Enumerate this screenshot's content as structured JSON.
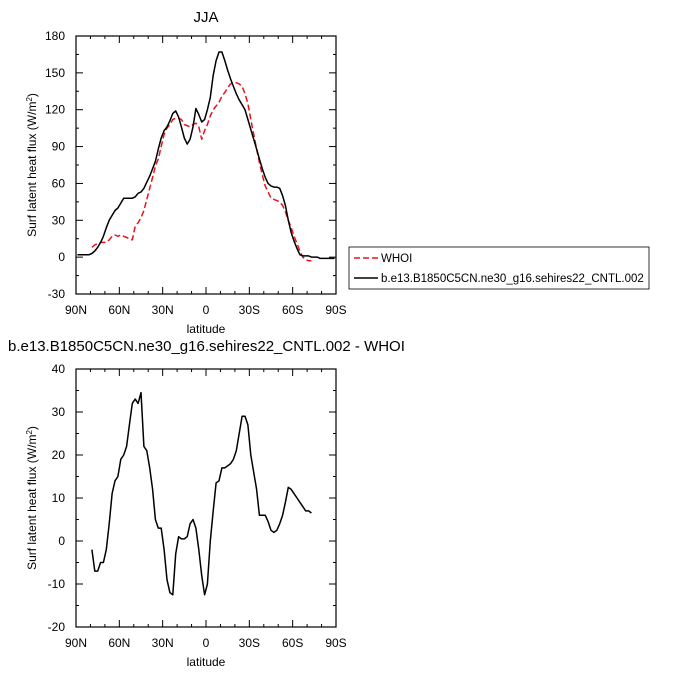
{
  "chart_data": [
    {
      "type": "line",
      "title": "JJA",
      "xlabel": "latitude",
      "ylabel": "Surf latent heat flux (W/m",
      "ylabel_sup": "2",
      "ylabel_close": ")",
      "xlim": [
        90,
        -90
      ],
      "ylim": [
        -30,
        180
      ],
      "xticks": [
        90,
        60,
        30,
        0,
        -30,
        -60,
        -90
      ],
      "xtick_labels": [
        "90N",
        "60N",
        "30N",
        "0",
        "30S",
        "60S",
        "90S"
      ],
      "yticks": [
        -30,
        0,
        30,
        60,
        90,
        120,
        150,
        180
      ],
      "ytick_labels": [
        "-30",
        "0",
        "30",
        "60",
        "90",
        "120",
        "150",
        "180"
      ],
      "grid": false,
      "legend_position": "right",
      "series": [
        {
          "name": "WHOI",
          "color": "#e8141c",
          "dash": "dashed",
          "x": [
            79,
            77,
            75,
            73,
            71,
            69,
            67,
            65,
            63,
            61,
            59,
            57,
            55,
            53,
            51,
            49,
            47,
            45,
            43,
            41,
            39,
            37,
            35,
            33,
            31,
            29,
            27,
            25,
            23,
            21,
            19,
            17,
            15,
            13,
            11,
            9,
            7,
            5,
            3,
            1,
            -1,
            -3,
            -5,
            -7,
            -9,
            -11,
            -13,
            -15,
            -17,
            -19,
            -21,
            -23,
            -25,
            -27,
            -29,
            -31,
            -33,
            -35,
            -37,
            -39,
            -41,
            -43,
            -45,
            -47,
            -49,
            -51,
            -53,
            -55,
            -57,
            -59,
            -61,
            -63,
            -65,
            -67,
            -69,
            -71,
            -73
          ],
          "y": [
            8,
            10,
            11,
            12,
            12,
            12,
            14,
            17,
            18,
            17,
            18,
            17,
            16,
            15,
            14,
            25,
            28,
            32,
            38,
            47,
            56,
            65,
            74,
            80,
            90,
            100,
            105,
            108,
            112,
            113,
            113,
            112,
            108,
            107,
            106,
            108,
            109,
            106,
            96,
            103,
            108,
            115,
            120,
            123,
            126,
            131,
            134,
            138,
            141,
            142,
            142,
            141,
            139,
            133,
            125,
            112,
            100,
            88,
            77,
            67,
            58,
            53,
            48,
            47,
            46,
            45,
            42,
            37,
            30,
            24,
            17,
            11,
            5,
            0,
            -2,
            -3,
            -3
          ]
        },
        {
          "name": "b.e13.B1850C5CN.ne30_g16.sehires22_CNTL.002",
          "color": "#000000",
          "dash": "solid",
          "x": [
            89,
            87,
            85,
            83,
            81,
            79,
            77,
            75,
            73,
            71,
            69,
            67,
            65,
            63,
            61,
            59,
            57,
            55,
            53,
            51,
            49,
            47,
            45,
            43,
            41,
            39,
            37,
            35,
            33,
            31,
            29,
            27,
            25,
            23,
            21,
            19,
            17,
            15,
            13,
            11,
            9,
            7,
            5,
            3,
            1,
            -1,
            -3,
            -5,
            -7,
            -9,
            -11,
            -13,
            -15,
            -17,
            -19,
            -21,
            -23,
            -25,
            -27,
            -29,
            -31,
            -33,
            -35,
            -37,
            -39,
            -41,
            -43,
            -45,
            -47,
            -49,
            -51,
            -53,
            -55,
            -57,
            -59,
            -61,
            -63,
            -65,
            -67,
            -69,
            -71,
            -73,
            -75,
            -77,
            -79,
            -81,
            -83,
            -85,
            -87,
            -89
          ],
          "y": [
            2,
            2,
            2,
            2,
            2,
            3,
            5,
            8,
            12,
            17,
            24,
            30,
            34,
            38,
            40,
            44,
            48,
            48,
            48,
            48,
            49,
            52,
            53,
            56,
            61,
            66,
            72,
            78,
            88,
            97,
            103,
            106,
            111,
            117,
            119,
            114,
            106,
            97,
            92,
            96,
            106,
            121,
            116,
            110,
            112,
            120,
            130,
            148,
            160,
            167,
            167,
            160,
            152,
            145,
            139,
            133,
            128,
            124,
            120,
            112,
            104,
            96,
            88,
            80,
            72,
            65,
            60,
            58,
            57,
            57,
            56,
            50,
            42,
            30,
            20,
            13,
            7,
            2,
            1,
            1,
            1,
            0,
            0,
            0,
            -1,
            -1,
            -1,
            -1,
            -1,
            -1
          ]
        }
      ]
    },
    {
      "type": "line",
      "title": "b.e13.B1850C5CN.ne30_g16.sehires22_CNTL.002 - WHOI",
      "xlabel": "latitude",
      "ylabel": "Surf latent heat flux (W/m",
      "ylabel_sup": "2",
      "ylabel_close": ")",
      "xlim": [
        90,
        -90
      ],
      "ylim": [
        -20,
        40
      ],
      "xticks": [
        90,
        60,
        30,
        0,
        -30,
        -60,
        -90
      ],
      "xtick_labels": [
        "90N",
        "60N",
        "30N",
        "0",
        "30S",
        "60S",
        "90S"
      ],
      "yticks": [
        -20,
        -10,
        0,
        10,
        20,
        30,
        40
      ],
      "ytick_labels": [
        "-20",
        "-10",
        "0",
        "10",
        "20",
        "30",
        "40"
      ],
      "grid": false,
      "series": [
        {
          "color": "#000000",
          "dash": "solid",
          "x": [
            79,
            77,
            75,
            73,
            71,
            69,
            67,
            65,
            63,
            61,
            59,
            57,
            55,
            53,
            51,
            49,
            47,
            45,
            43,
            41,
            39,
            37,
            35,
            33,
            31,
            29,
            27,
            25,
            23,
            21,
            19,
            17,
            15,
            13,
            11,
            9,
            7,
            5,
            3,
            1,
            -1,
            -3,
            -5,
            -7,
            -9,
            -11,
            -13,
            -15,
            -17,
            -19,
            -21,
            -23,
            -25,
            -27,
            -29,
            -31,
            -33,
            -35,
            -37,
            -39,
            -41,
            -43,
            -45,
            -47,
            -49,
            -51,
            -53,
            -55,
            -57,
            -59,
            -61,
            -63,
            -65,
            -67,
            -69,
            -71,
            -73
          ],
          "y": [
            -2,
            -7,
            -7,
            -5,
            -5,
            -2,
            4,
            11,
            14,
            15,
            19,
            20,
            22,
            27,
            32,
            33,
            32,
            34.5,
            22,
            21,
            17,
            12,
            5,
            3,
            3,
            -2,
            -9,
            -12,
            -12.5,
            -3,
            1,
            0.5,
            0.5,
            1,
            4,
            5,
            3,
            -2,
            -8,
            -12.5,
            -10,
            0,
            7,
            13.5,
            14,
            17,
            17,
            17.5,
            18,
            19,
            21,
            25,
            29,
            29,
            27,
            20,
            16,
            12,
            6,
            6,
            6,
            4.5,
            2.5,
            2,
            2.5,
            4,
            6,
            9,
            12.5,
            12,
            11,
            10,
            9,
            8,
            7,
            7,
            6.5
          ]
        }
      ]
    }
  ]
}
